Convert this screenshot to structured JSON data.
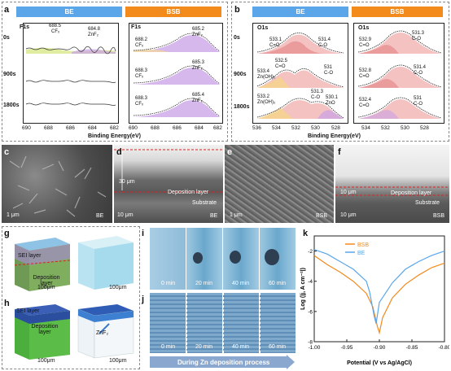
{
  "panels": {
    "a": "a",
    "b": "b",
    "c": "c",
    "d": "d",
    "e": "e",
    "f": "f",
    "g": "g",
    "h": "h",
    "i": "i",
    "j": "j",
    "k": "k"
  },
  "groups": {
    "be": "BE",
    "bsb": "BSB"
  },
  "xps_f": {
    "core": "F1s",
    "times": [
      "0s",
      "900s",
      "1800s"
    ],
    "be_peaks": {
      "top_a": "688.5",
      "top_a_sp": "CFₓ",
      "top_b": "684.8",
      "top_b_sp": "ZnF₂"
    },
    "bsb_peaks": [
      {
        "a": "688.2",
        "a_sp": "CFₓ",
        "b": "685.2",
        "b_sp": "ZnF₂"
      },
      {
        "a": "688.3",
        "a_sp": "CFₓ",
        "b": "685.3",
        "b_sp": "ZnF₂"
      },
      {
        "a": "688.3",
        "a_sp": "CFₓ",
        "b": "685.4",
        "b_sp": "ZnF₂"
      }
    ],
    "xticks": [
      "690",
      "688",
      "686",
      "684",
      "682"
    ],
    "xlabel": "Binding Energy(eV)"
  },
  "xps_o": {
    "core": "O1s",
    "times": [
      "0s",
      "900s",
      "1800s"
    ],
    "be_peaks": [
      {
        "p1": "533.1",
        "p1_sp": "C=O",
        "p2": "531.4",
        "p2_sp": "C-O"
      },
      {
        "p1": "532.5",
        "p1_sp": "C=O",
        "p0": "533.4",
        "p0_sp": "Zn(OH)₂",
        "p2": "531",
        "p2_sp": "C-O"
      },
      {
        "p0": "533.2",
        "p0_sp": "Zn(OH)₂",
        "p1": "531.3",
        "p1_sp": "C-O",
        "p2": "530.1",
        "p2_sp": "ZnO"
      }
    ],
    "bsb_peaks": [
      {
        "p1": "532.9",
        "p1_sp": "C=O",
        "p2": "531.3",
        "p2_sp": "C-O"
      },
      {
        "p1": "532.8",
        "p1_sp": "C=O",
        "p2": "531.4",
        "p2_sp": "C-O"
      },
      {
        "p1": "532.4",
        "p1_sp": "C=O",
        "p2": "531",
        "p2_sp": "C-O"
      }
    ],
    "xticks": [
      "536",
      "534",
      "532",
      "530",
      "528"
    ],
    "xticks_bsb": [
      "534",
      "532",
      "530",
      "528"
    ],
    "xlabel": "Binding Energy(eV)"
  },
  "sem": {
    "c_scale": "1 μm",
    "c_tag": "BE",
    "d_scale": "10 μm",
    "d_tag": "BE",
    "d_thick": "30 μm",
    "d_dep": "Deposition layer",
    "d_sub": "Substrate",
    "e_scale": "1 μm",
    "e_tag": "BSB",
    "f_scale": "10 μm",
    "f_tag": "BSB",
    "f_thick": "10 μm",
    "f_dep": "Deposition layer",
    "f_sub": "Substrate"
  },
  "tomo": {
    "g_sei": "SEI layer",
    "g_dep": "Deposition layer",
    "g_scale1": "100μm",
    "g_scale2": "100μm",
    "h_sei": "SEI layer",
    "h_dep": "Deposition layer",
    "h_znf": "ZnF₂",
    "h_scale1": "100μm",
    "h_scale2": "100μm"
  },
  "optical": {
    "times": [
      "0 min",
      "20 min",
      "40 min",
      "60 min"
    ],
    "caption": "During Zn deposition process"
  },
  "chart_data": {
    "type": "line",
    "title": "",
    "xlabel": "Potential (V vs Ag/AgCl)",
    "ylabel": "Log (|j, A cm⁻²|)",
    "xlim": [
      -1.0,
      -0.8
    ],
    "ylim": [
      -8,
      -1
    ],
    "xticks": [
      "-1.00",
      "-0.95",
      "-0.90",
      "-0.85",
      "-0.80"
    ],
    "yticks": [
      "-8",
      "-6",
      "-4",
      "-2"
    ],
    "legend_position": "top-left",
    "series": [
      {
        "name": "BSB",
        "color": "#f28a1c",
        "x": [
          -1.0,
          -0.98,
          -0.96,
          -0.94,
          -0.92,
          -0.91,
          -0.903,
          -0.9,
          -0.895,
          -0.88,
          -0.86,
          -0.84,
          -0.82,
          -0.8
        ],
        "y": [
          -2.3,
          -2.9,
          -3.4,
          -4.0,
          -4.8,
          -5.7,
          -7.0,
          -7.4,
          -6.4,
          -5.1,
          -4.2,
          -3.6,
          -3.1,
          -2.8
        ]
      },
      {
        "name": "BE",
        "color": "#5aa6e8",
        "x": [
          -1.0,
          -0.98,
          -0.96,
          -0.94,
          -0.92,
          -0.915,
          -0.908,
          -0.905,
          -0.9,
          -0.88,
          -0.86,
          -0.84,
          -0.82,
          -0.8
        ],
        "y": [
          -1.9,
          -2.2,
          -2.7,
          -3.2,
          -4.0,
          -4.7,
          -6.3,
          -6.8,
          -5.4,
          -4.1,
          -3.2,
          -2.7,
          -2.3,
          -2.0
        ]
      }
    ]
  }
}
